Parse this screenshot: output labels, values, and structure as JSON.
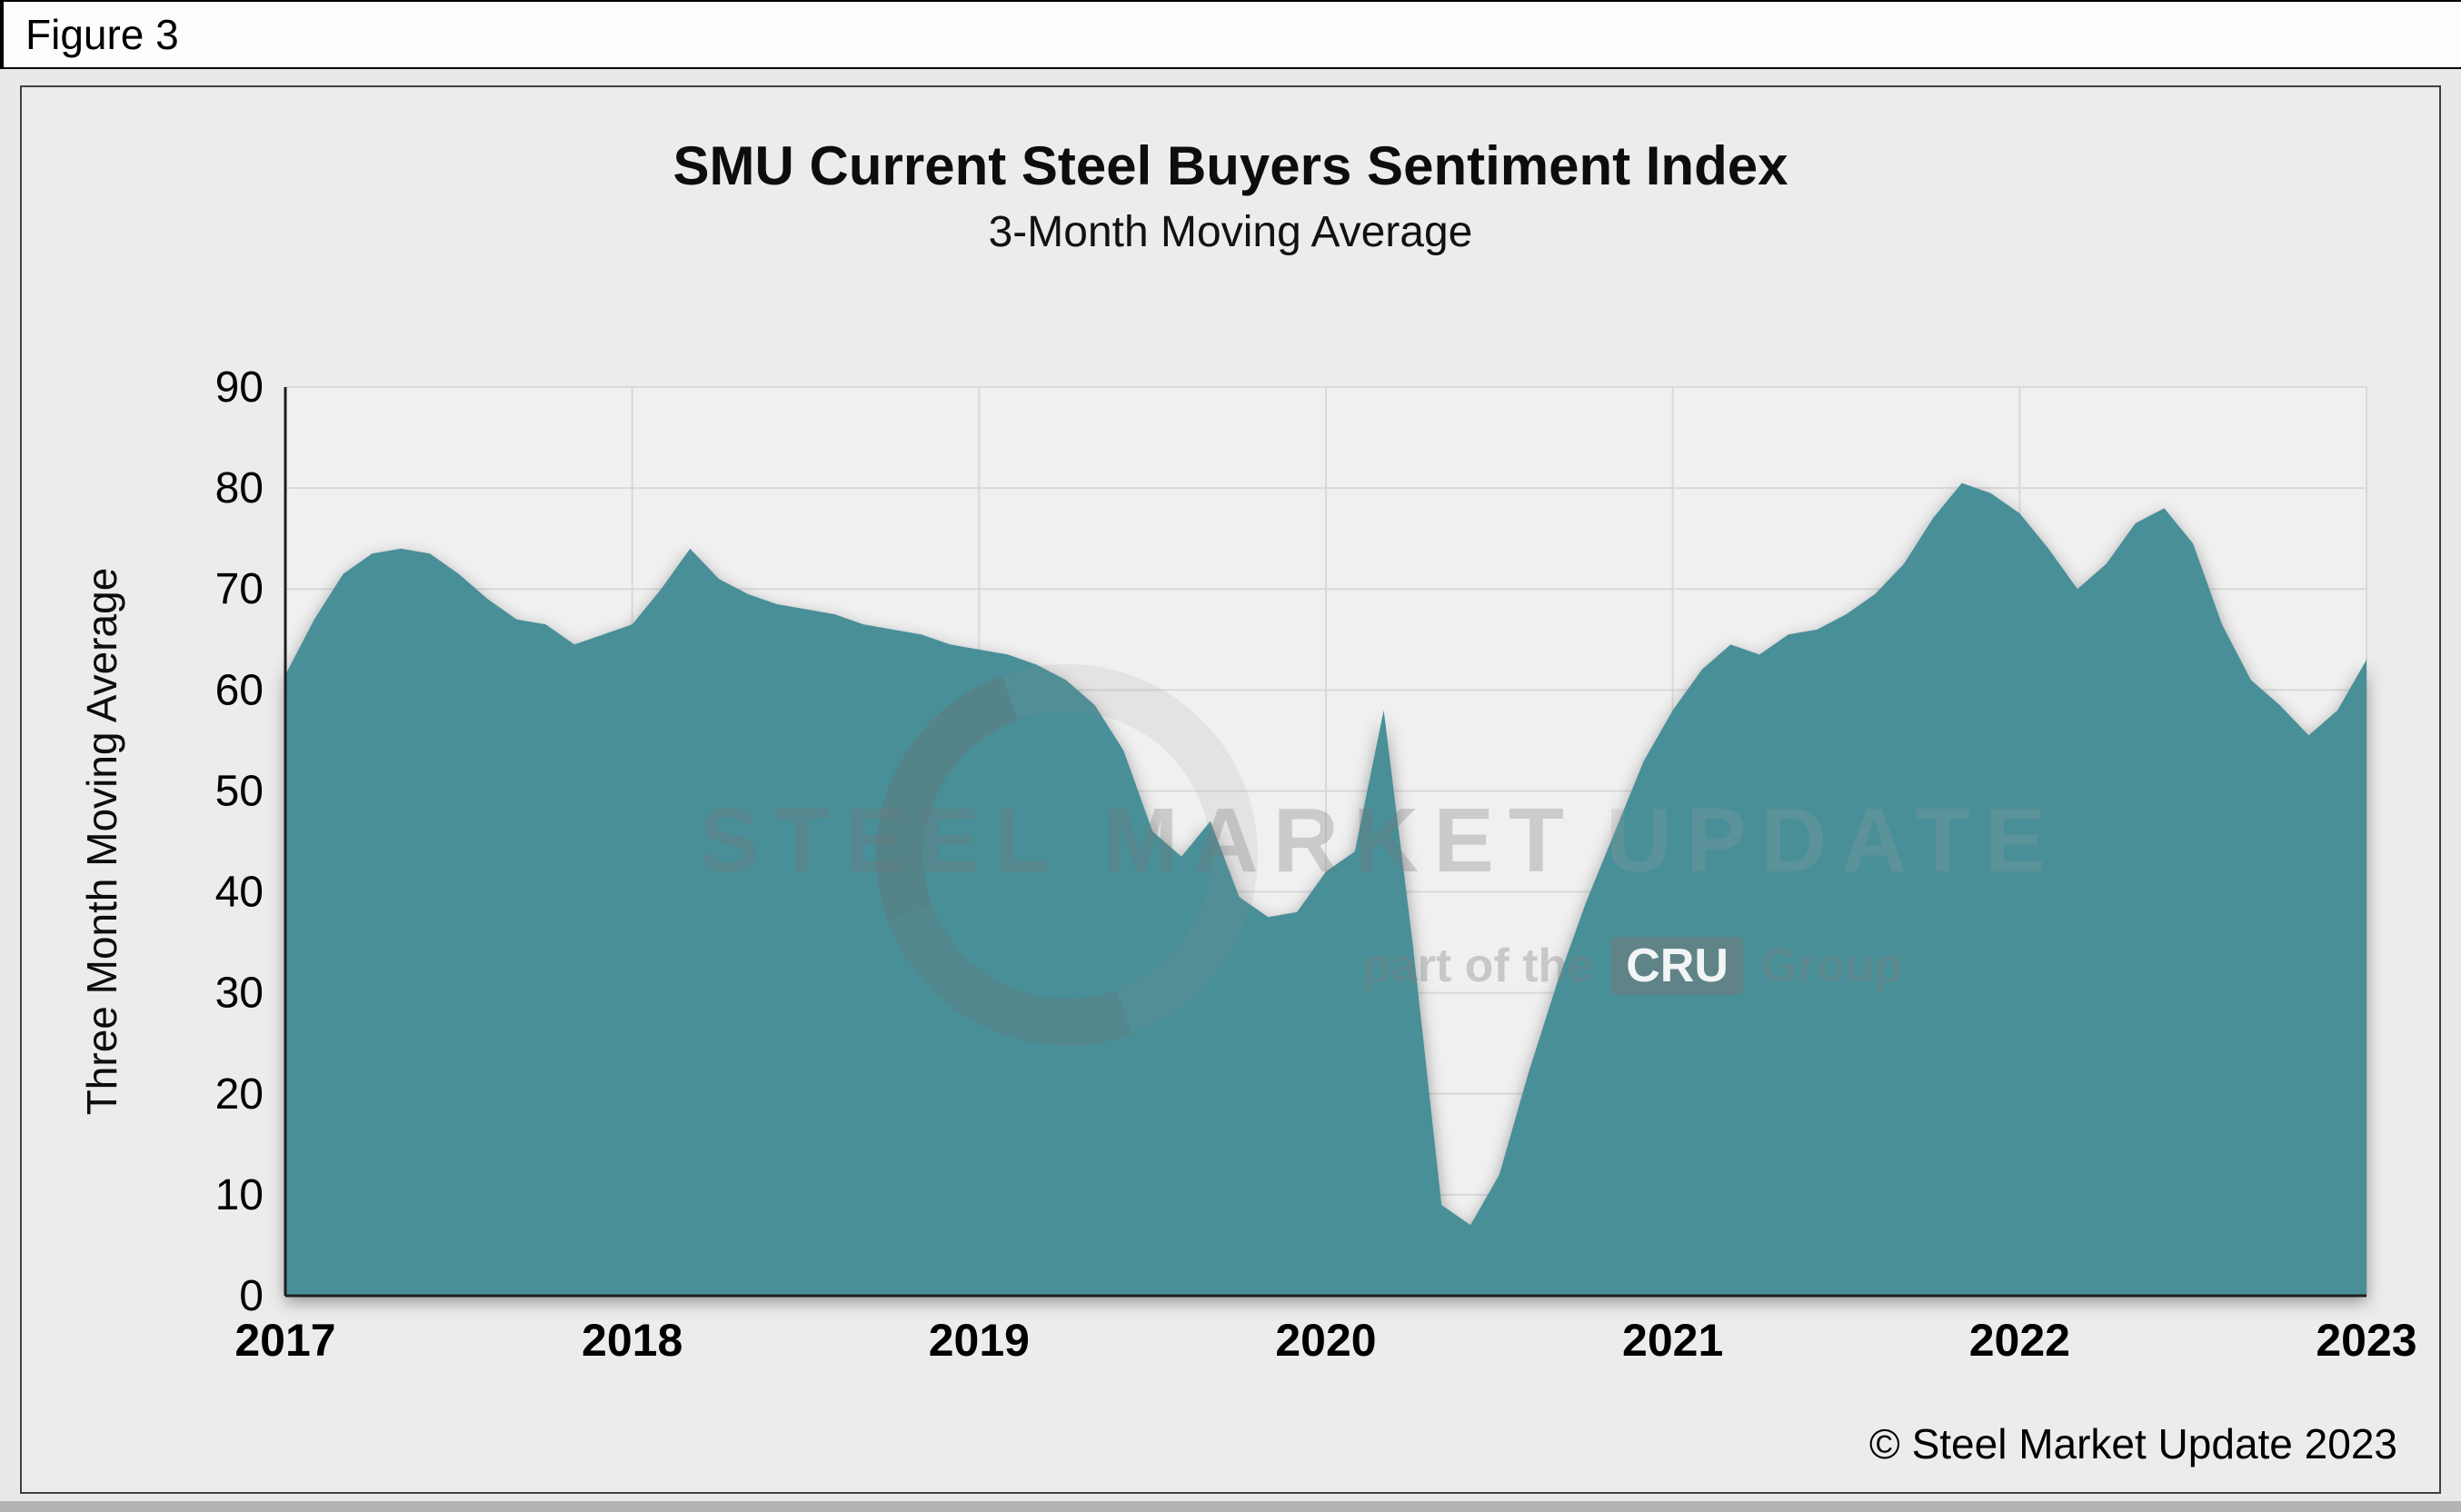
{
  "figure": {
    "label": "Figure 3"
  },
  "chart_data": {
    "type": "area",
    "title": "SMU Current Steel Buyers Sentiment Index",
    "subtitle": "3-Month Moving Average",
    "ylabel": "Three Month Moving Average",
    "ylim": [
      0,
      90
    ],
    "ytick_interval": 10,
    "x_tick_labels": [
      "2017",
      "2018",
      "2019",
      "2020",
      "2021",
      "2022",
      "2023"
    ],
    "frequency": "monthly",
    "start": "2017-01",
    "end": "2023-01",
    "values": [
      61.5,
      67,
      71.5,
      73.5,
      74,
      73.5,
      71.5,
      69,
      67,
      66.5,
      64.5,
      65.5,
      66.5,
      70,
      74,
      71,
      69.5,
      68.5,
      68,
      67.5,
      66.5,
      66,
      65.5,
      64.5,
      64,
      63.5,
      62.5,
      61,
      58.5,
      54,
      46,
      43.5,
      47,
      39.5,
      37.5,
      38,
      42,
      44,
      58,
      35,
      9,
      7,
      12,
      22,
      31,
      39,
      46,
      53,
      58,
      62,
      64.5,
      63.5,
      65.5,
      66,
      67.5,
      69.5,
      72.5,
      77,
      80.5,
      79.5,
      77.5,
      74,
      70,
      72.5,
      76.5,
      78,
      74.5,
      66.5,
      61,
      58.5,
      55.5,
      58,
      63
    ],
    "fill_color": "#4a8f98",
    "grid": true,
    "legend": "none"
  },
  "watermark": {
    "brand_strong": "STEEL MARKET",
    "brand_light": "UPDATE",
    "tagline_prefix": "part of the",
    "cru": "CRU",
    "tagline_suffix": "Group"
  },
  "footer": {
    "copyright": "© Steel Market Update 2023"
  }
}
